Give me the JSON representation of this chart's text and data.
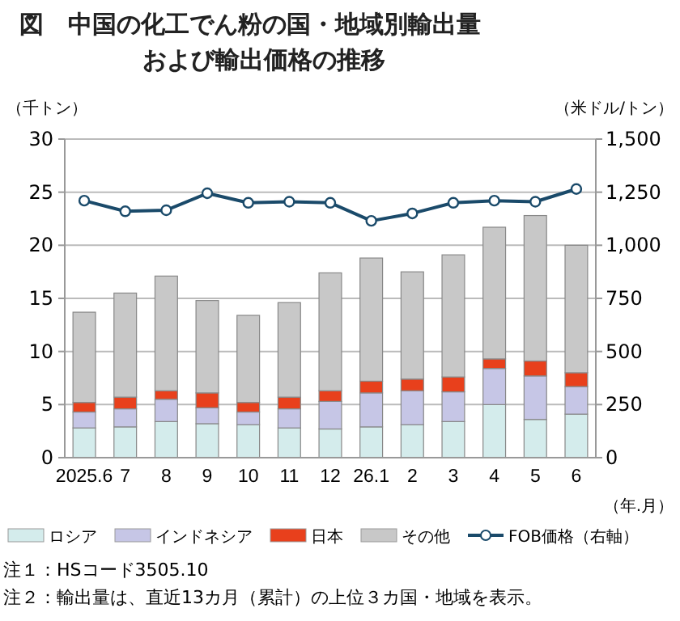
{
  "chart_data": {
    "type": "bar",
    "title": "図　中国の化工でん粉の国・地域別輸出量",
    "subtitle": "および輸出価格の推移",
    "ylabel": "（千トン）",
    "y2label": "（米ドル/トン）",
    "xlabel": "（年.月）",
    "categories": [
      "2025.6",
      "7",
      "8",
      "9",
      "10",
      "11",
      "12",
      "26.1",
      "2",
      "3",
      "4",
      "5",
      "6"
    ],
    "stacked": true,
    "grid": "y",
    "legend": "bottom",
    "ylim": [
      0,
      30
    ],
    "yticks": [
      0,
      5,
      10,
      15,
      20,
      25,
      30
    ],
    "y2lim": [
      0,
      1500
    ],
    "y2ticks": [
      0,
      250,
      500,
      750,
      {
        "value": 1000,
        "label": "1,000"
      },
      {
        "value": 1250,
        "label": "1,250"
      },
      {
        "value": 1500,
        "label": "1,500"
      }
    ],
    "series": [
      {
        "name": "ロシア",
        "color": "#d4ecec",
        "values": [
          2.8,
          2.9,
          3.4,
          3.2,
          3.1,
          2.8,
          2.7,
          2.9,
          3.1,
          3.4,
          5.0,
          3.6,
          4.1
        ]
      },
      {
        "name": "インドネシア",
        "color": "#c6c6e6",
        "values": [
          1.5,
          1.7,
          2.1,
          1.5,
          1.2,
          1.8,
          2.6,
          3.2,
          3.2,
          2.8,
          3.4,
          4.1,
          2.6
        ]
      },
      {
        "name": "日本",
        "color": "#e8401c",
        "values": [
          0.9,
          1.1,
          0.8,
          1.4,
          0.9,
          1.1,
          1.0,
          1.1,
          1.1,
          1.4,
          0.9,
          1.4,
          1.3
        ]
      },
      {
        "name": "その他",
        "color": "#c8c8c8",
        "values": [
          8.5,
          9.8,
          10.8,
          8.7,
          8.2,
          8.9,
          11.1,
          11.6,
          10.1,
          11.5,
          12.4,
          13.7,
          12.0
        ]
      },
      {
        "name": "FOB価格（右軸）",
        "type": "line",
        "axis": "y2",
        "color": "#1a4a6a",
        "marker": "circle",
        "values": [
          1210,
          1160,
          1165,
          1245,
          1200,
          1205,
          1200,
          1115,
          1150,
          1200,
          1210,
          1205,
          1265
        ]
      }
    ],
    "annotations": [
      "注１：HSコード3505.10",
      "注２：輸出量は、直近13カ月（累計）の上位３カ国・地域を表示。"
    ]
  }
}
